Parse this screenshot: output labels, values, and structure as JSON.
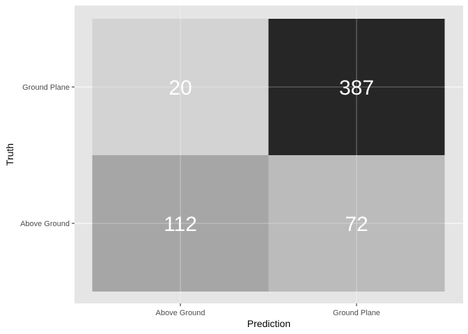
{
  "chart_data": {
    "type": "heatmap",
    "title": "",
    "xlabel": "Prediction",
    "ylabel": "Truth",
    "x_categories": [
      "Above Ground",
      "Ground Plane"
    ],
    "y_categories": [
      "Above Ground",
      "Ground Plane"
    ],
    "cells": [
      {
        "prediction": "Above Ground",
        "truth": "Ground Plane",
        "value": 20,
        "label": "20"
      },
      {
        "prediction": "Ground Plane",
        "truth": "Ground Plane",
        "value": 387,
        "label": "387"
      },
      {
        "prediction": "Above Ground",
        "truth": "Above Ground",
        "value": 112,
        "label": "112"
      },
      {
        "prediction": "Ground Plane",
        "truth": "Above Ground",
        "value": 72,
        "label": "72"
      }
    ],
    "grid": true,
    "legend": "none",
    "colors": {
      "panel_background": "#e5e5e5",
      "gridline": "#ffffff",
      "cell_label": "#ffffff",
      "cell_fills": {
        "20": "#d3d3d3",
        "387": "#262626",
        "112": "#a6a6a6",
        "72": "#bbbbbb"
      }
    }
  }
}
